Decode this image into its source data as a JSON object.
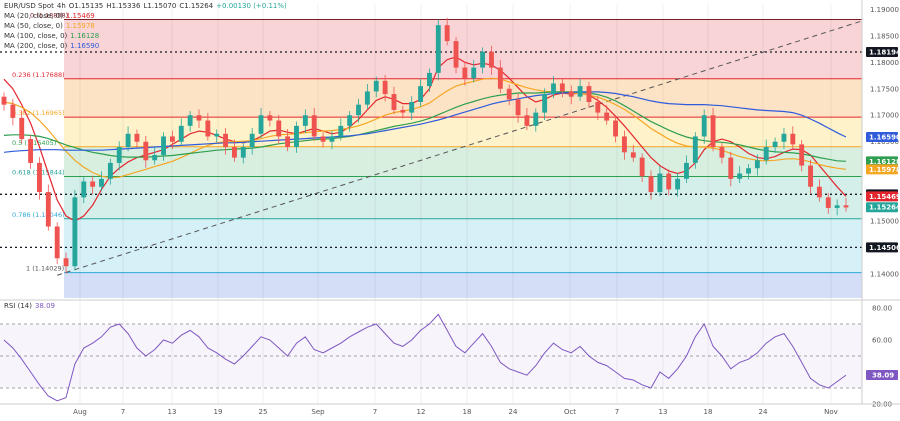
{
  "header": {
    "symbol": "EUR/USD Spot",
    "tf": "4h",
    "o": "O1.15135",
    "h": "H1.15336",
    "l": "L1.15070",
    "c": "C1.15264",
    "chg": "+0.00130 (+0.11%)",
    "ma_lines": [
      {
        "label": "MA (20, close, 0)",
        "value": "1.15469",
        "color": "#e3262e"
      },
      {
        "label": "MA (50, close, 0)",
        "value": "1.15978",
        "color": "#f5a623"
      },
      {
        "label": "MA (100, close, 0)",
        "value": "1.16128",
        "color": "#2e9e4f"
      },
      {
        "label": "MA (200, close, 0)",
        "value": "1.16590",
        "color": "#2f5bdb"
      }
    ]
  },
  "chart_data": [
    {
      "type": "line",
      "title": "",
      "x_tick_labels": [
        "Aug",
        "7",
        "13",
        "19",
        "25",
        "Sep",
        "7",
        "12",
        "18",
        "24",
        "Oct",
        "7",
        "13",
        "18",
        "24",
        "Nov"
      ],
      "ylim": [
        1.1355,
        1.191
      ],
      "y_tick_labels": [
        "1.19000",
        "1.18500",
        "1.18000",
        "1.17500",
        "1.17000",
        "1.16500",
        "1.16000",
        "1.15500",
        "1.15000",
        "1.14500",
        "1.14000",
        "1.13500"
      ],
      "price_close": [
        1.172,
        1.1695,
        1.1655,
        1.161,
        1.1555,
        1.149,
        1.143,
        1.1415,
        1.1545,
        1.1575,
        1.1565,
        1.158,
        1.161,
        1.164,
        1.1665,
        1.165,
        1.1615,
        1.1625,
        1.166,
        1.165,
        1.168,
        1.17,
        1.169,
        1.166,
        1.1665,
        1.164,
        1.162,
        1.164,
        1.1665,
        1.17,
        1.169,
        1.166,
        1.164,
        1.168,
        1.17,
        1.166,
        1.165,
        1.166,
        1.168,
        1.17,
        1.172,
        1.1745,
        1.1765,
        1.174,
        1.171,
        1.1705,
        1.1725,
        1.1755,
        1.178,
        1.187,
        1.184,
        1.179,
        1.177,
        1.179,
        1.182,
        1.179,
        1.175,
        1.173,
        1.17,
        1.168,
        1.1705,
        1.174,
        1.176,
        1.1745,
        1.1735,
        1.1755,
        1.1725,
        1.1705,
        1.169,
        1.166,
        1.163,
        1.162,
        1.1585,
        1.1555,
        1.159,
        1.156,
        1.158,
        1.161,
        1.166,
        1.17,
        1.164,
        1.162,
        1.158,
        1.159,
        1.16,
        1.1615,
        1.164,
        1.165,
        1.1665,
        1.1645,
        1.1605,
        1.1565,
        1.1545,
        1.1525,
        1.153,
        1.1526
      ],
      "series": [
        {
          "name": "MA (20, close, 0)",
          "last": 1.15469,
          "values": [
            1.1768,
            1.175,
            1.172,
            1.1685,
            1.164,
            1.159,
            1.154,
            1.151,
            1.15,
            1.151,
            1.153,
            1.156,
            1.1585,
            1.16,
            1.1612,
            1.162,
            1.1625,
            1.163,
            1.1635,
            1.1645,
            1.1655,
            1.1665,
            1.167,
            1.1668,
            1.1662,
            1.1655,
            1.165,
            1.1648,
            1.1652,
            1.166,
            1.167,
            1.1672,
            1.1668,
            1.1665,
            1.167,
            1.1675,
            1.167,
            1.1665,
            1.1668,
            1.1678,
            1.1692,
            1.171,
            1.1728,
            1.1735,
            1.173,
            1.1722,
            1.1722,
            1.173,
            1.175,
            1.179,
            1.1805,
            1.181,
            1.18,
            1.1795,
            1.1798,
            1.1795,
            1.1785,
            1.177,
            1.1752,
            1.1735,
            1.1725,
            1.173,
            1.1738,
            1.1742,
            1.174,
            1.1742,
            1.1738,
            1.1728,
            1.1715,
            1.1698,
            1.168,
            1.166,
            1.164,
            1.162,
            1.1605,
            1.1595,
            1.159,
            1.1595,
            1.161,
            1.1635,
            1.165,
            1.1655,
            1.165,
            1.164,
            1.1628,
            1.162,
            1.1618,
            1.1622,
            1.163,
            1.1636,
            1.1635,
            1.1625,
            1.1605,
            1.1585,
            1.1565,
            1.1547
          ]
        },
        {
          "name": "MA (50, close, 0)",
          "last": 1.15978,
          "values": [
            1.1725,
            1.1722,
            1.1715,
            1.1705,
            1.169,
            1.1672,
            1.1652,
            1.1632,
            1.1615,
            1.1602,
            1.1592,
            1.1585,
            1.1582,
            1.1583,
            1.1588,
            1.1593,
            1.1598,
            1.1603,
            1.1608,
            1.1613,
            1.162,
            1.1628,
            1.1636,
            1.1643,
            1.1648,
            1.165,
            1.165,
            1.1651,
            1.1652,
            1.1656,
            1.166,
            1.1663,
            1.1664,
            1.1665,
            1.1667,
            1.1669,
            1.167,
            1.1671,
            1.1673,
            1.1676,
            1.168,
            1.1686,
            1.1693,
            1.17,
            1.1705,
            1.1708,
            1.1711,
            1.1716,
            1.1723,
            1.1735,
            1.1746,
            1.1755,
            1.176,
            1.1764,
            1.1768,
            1.177,
            1.1768,
            1.1763,
            1.1757,
            1.1752,
            1.1748,
            1.1745,
            1.1744,
            1.1743,
            1.1742,
            1.1741,
            1.1738,
            1.1734,
            1.1728,
            1.172,
            1.1711,
            1.17,
            1.1688,
            1.1675,
            1.1665,
            1.1655,
            1.1647,
            1.1642,
            1.164,
            1.164,
            1.1638,
            1.1634,
            1.1628,
            1.1622,
            1.1618,
            1.1615,
            1.1614,
            1.1615,
            1.1617,
            1.1618,
            1.1616,
            1.1612,
            1.1607,
            1.1603,
            1.16,
            1.1598
          ]
        },
        {
          "name": "MA (100, close, 0)",
          "last": 1.16128,
          "values": [
            1.1662,
            1.1663,
            1.1663,
            1.1662,
            1.166,
            1.1656,
            1.165,
            1.1644,
            1.1639,
            1.1634,
            1.163,
            1.1627,
            1.1624,
            1.1622,
            1.1621,
            1.1621,
            1.1621,
            1.1622,
            1.1623,
            1.1624,
            1.1626,
            1.1628,
            1.163,
            1.1632,
            1.1634,
            1.1635,
            1.1636,
            1.1637,
            1.1638,
            1.164,
            1.1643,
            1.1646,
            1.1648,
            1.165,
            1.1652,
            1.1654,
            1.1655,
            1.1656,
            1.1658,
            1.166,
            1.1663,
            1.1667,
            1.1671,
            1.1675,
            1.1679,
            1.1682,
            1.1685,
            1.1689,
            1.1694,
            1.1701,
            1.1708,
            1.1715,
            1.1721,
            1.1726,
            1.1731,
            1.1735,
            1.1738,
            1.174,
            1.1742,
            1.1742,
            1.1742,
            1.1743,
            1.1744,
            1.1744,
            1.1744,
            1.1744,
            1.1742,
            1.1739,
            1.1734,
            1.1727,
            1.1718,
            1.1708,
            1.1698,
            1.1688,
            1.168,
            1.1672,
            1.1665,
            1.1659,
            1.1655,
            1.1652,
            1.165,
            1.1649,
            1.1647,
            1.1644,
            1.164,
            1.1636,
            1.1633,
            1.1631,
            1.163,
            1.1629,
            1.1627,
            1.1624,
            1.162,
            1.1617,
            1.1614,
            1.1613
          ]
        },
        {
          "name": "MA (200, close, 0)",
          "last": 1.1659,
          "values": [
            1.163,
            1.1632,
            1.1633,
            1.1634,
            1.1635,
            1.1635,
            1.1635,
            1.1634,
            1.1634,
            1.1634,
            1.1634,
            1.1634,
            1.1635,
            1.1636,
            1.1637,
            1.1638,
            1.1639,
            1.164,
            1.1641,
            1.1642,
            1.1643,
            1.1644,
            1.1645,
            1.1646,
            1.1647,
            1.1648,
            1.1648,
            1.1649,
            1.165,
            1.1651,
            1.1652,
            1.1653,
            1.1654,
            1.1655,
            1.1656,
            1.1657,
            1.1658,
            1.1659,
            1.166,
            1.1661,
            1.1663,
            1.1665,
            1.1668,
            1.1671,
            1.1674,
            1.1677,
            1.168,
            1.1683,
            1.1687,
            1.1691,
            1.1696,
            1.1701,
            1.1706,
            1.1711,
            1.1716,
            1.1721,
            1.1725,
            1.1728,
            1.1731,
            1.1734,
            1.1737,
            1.1739,
            1.1741,
            1.1742,
            1.1743,
            1.1744,
            1.1744,
            1.1744,
            1.1743,
            1.1741,
            1.1738,
            1.1735,
            1.1731,
            1.1727,
            1.1724,
            1.1722,
            1.1721,
            1.172,
            1.172,
            1.172,
            1.1719,
            1.1718,
            1.1716,
            1.1714,
            1.1712,
            1.171,
            1.1709,
            1.1708,
            1.1707,
            1.1705,
            1.17,
            1.1693,
            1.1685,
            1.1676,
            1.1667,
            1.1659
          ]
        }
      ],
      "fib_levels": [
        {
          "label": "0.236 (1.17688)",
          "value": 1.17688
        },
        {
          "label": "0.382 (1.16965)",
          "value": 1.16965
        },
        {
          "label": "0.5 (1.16405)",
          "value": 1.16405
        },
        {
          "label": "0.618 (1.15844)",
          "value": 1.15844
        },
        {
          "label": "0.786 (1.15046)",
          "value": 1.15046
        },
        {
          "label": "1 (1.14029)",
          "value": 1.14029
        }
      ],
      "fib_top_label": "0 (1.18808)",
      "fib_top_value": 1.18808,
      "dotted_levels": [
        1.18194,
        1.15507,
        1.14506
      ],
      "price_tags": [
        {
          "label": "1.18194",
          "value": 1.18194,
          "color": "#131722"
        },
        {
          "label": "1.16590",
          "value": 1.1659,
          "color": "#2f5bdb"
        },
        {
          "label": "1.16128",
          "value": 1.16128,
          "color": "#2e9e4f"
        },
        {
          "label": "1.15978",
          "value": 1.15978,
          "color": "#f5a623"
        },
        {
          "label": "1.15507",
          "value": 1.15507,
          "color": "#131722"
        },
        {
          "label": "1.15469",
          "value": 1.15469,
          "color": "#e3262e"
        },
        {
          "label": "1.15264",
          "value": 1.15264,
          "color": "#26a69a"
        },
        {
          "label": "1.14506",
          "value": 1.14506,
          "color": "#131722"
        }
      ],
      "trendline": {
        "from": 1.1398,
        "to": 1.1878
      }
    },
    {
      "type": "line",
      "title": "RSI (14)",
      "ylim": [
        20,
        85
      ],
      "y_tick_labels": [
        "80.00",
        "60.00",
        "20.00"
      ],
      "bands": [
        70,
        50,
        30
      ],
      "last_label": "38.09",
      "values": [
        60,
        55,
        48,
        40,
        32,
        25,
        22,
        24,
        45,
        55,
        58,
        62,
        68,
        70,
        64,
        55,
        50,
        54,
        60,
        58,
        63,
        66,
        62,
        55,
        52,
        48,
        45,
        50,
        56,
        62,
        60,
        55,
        50,
        58,
        62,
        54,
        52,
        55,
        58,
        62,
        65,
        68,
        70,
        64,
        58,
        56,
        60,
        66,
        70,
        76,
        66,
        56,
        52,
        58,
        64,
        56,
        46,
        42,
        40,
        38,
        44,
        52,
        58,
        54,
        52,
        56,
        50,
        46,
        44,
        40,
        36,
        35,
        32,
        30,
        40,
        36,
        42,
        50,
        62,
        70,
        56,
        50,
        42,
        46,
        48,
        52,
        58,
        62,
        64,
        56,
        46,
        36,
        32,
        30,
        34,
        38.09
      ]
    }
  ],
  "colors": {
    "bull": "#26a69a",
    "bear": "#ef5350",
    "rsi": "#7e57c2"
  }
}
